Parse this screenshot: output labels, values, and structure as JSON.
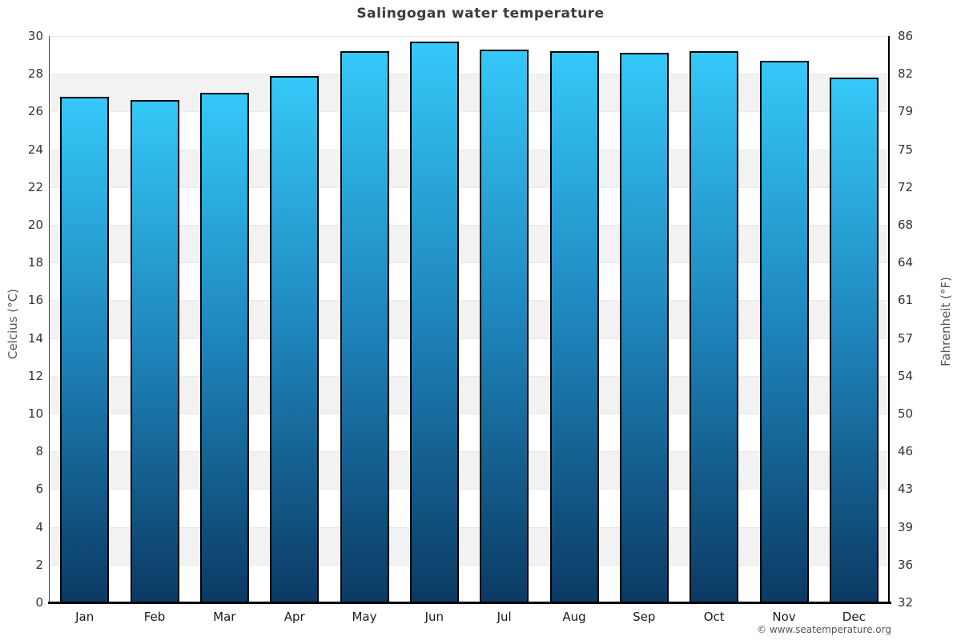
{
  "chart": {
    "title": "Salingogan water temperature",
    "y_left_label": "Celcius (°C)",
    "y_right_label": "Fahrenheit (°F)",
    "copyright": "© www.seatemperature.org"
  },
  "chart_data": {
    "type": "bar",
    "title": "Salingogan water temperature",
    "categories": [
      "Jan",
      "Feb",
      "Mar",
      "Apr",
      "May",
      "Jun",
      "Jul",
      "Aug",
      "Sep",
      "Oct",
      "Nov",
      "Dec"
    ],
    "values": [
      26.8,
      26.6,
      27.0,
      27.9,
      29.2,
      29.7,
      29.3,
      29.2,
      29.1,
      29.2,
      28.7,
      27.8
    ],
    "series_name": "Water temperature",
    "unit": "°C",
    "xlabel": "",
    "ylabel_left": "Celcius (°C)",
    "ylabel_right": "Fahrenheit (°F)",
    "ylim_left": [
      0,
      30
    ],
    "ylim_right": [
      32,
      86
    ],
    "yticks_left_top_to_bottom": [
      30,
      28,
      26,
      24,
      22,
      20,
      18,
      16,
      14,
      12,
      10,
      8,
      6,
      4,
      2,
      0
    ],
    "yticks_right_top_to_bottom": [
      86,
      82,
      79,
      75,
      72,
      68,
      64,
      61,
      57,
      54,
      50,
      46,
      43,
      39,
      36,
      32
    ],
    "grid": "alternating horizontal bands every 2°C, white and light gray, no legend",
    "legend": "none",
    "colors": {
      "bar_gradient_top": "#35c8f8",
      "bar_gradient_bottom": "#0b3a63",
      "bar_border": "#000000",
      "band_gray": "#f2f2f2",
      "band_white": "#ffffff",
      "title_text": "#3c3c3c",
      "tick_text": "#333333",
      "axis_title_text": "#555555"
    }
  }
}
